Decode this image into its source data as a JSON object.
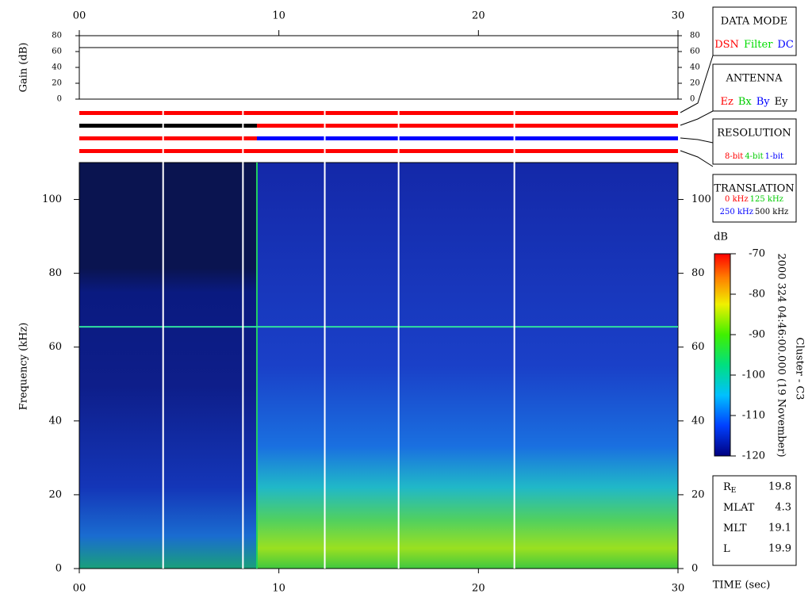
{
  "chart_data": [
    {
      "type": "line",
      "ylabel": "Gain (dB)",
      "xlim": [
        0,
        30
      ],
      "xticks": [
        {
          "value": 0,
          "label": "00"
        },
        10,
        20,
        30
      ],
      "ylim": [
        0,
        80
      ],
      "yticks": [
        0,
        20,
        40,
        60,
        80
      ],
      "x": [
        0,
        30
      ],
      "series": [
        {
          "color": "#000000",
          "values": [
            65,
            65
          ]
        }
      ]
    },
    {
      "type": "timeline",
      "xlim": [
        0,
        30
      ],
      "rows": [
        [
          {
            "start": 0,
            "end": 30,
            "color": "#ff0000"
          }
        ],
        [
          {
            "start": 0,
            "end": 8.9,
            "color": "#000000"
          },
          {
            "start": 8.9,
            "end": 30,
            "color": "#ff0000"
          }
        ],
        [
          {
            "start": 0,
            "end": 8.9,
            "color": "#ff0000"
          },
          {
            "start": 8.9,
            "end": 30,
            "color": "#0000ff"
          }
        ],
        [
          {
            "start": 0,
            "end": 30,
            "color": "#ff0000"
          }
        ]
      ]
    },
    {
      "type": "heatmap",
      "xlabel": "TIME (sec)",
      "ylabel": "Frequency (kHz)",
      "xlim": [
        0,
        30
      ],
      "xticks": [
        {
          "value": 0,
          "label": "00"
        },
        10,
        20,
        30
      ],
      "ylim": [
        0,
        110
      ],
      "yticks": [
        0,
        20,
        40,
        60,
        80,
        100
      ],
      "data_gaps": [
        4.2,
        8.2,
        12.3,
        16,
        21.8
      ],
      "mode_change": 8.9,
      "interference_line": 65.5,
      "colorbar": {
        "label": "dB",
        "lim": [
          -120,
          -70
        ],
        "ticks": [
          -70,
          -80,
          -90,
          -100,
          -110,
          -120
        ]
      },
      "caption": [
        "2000 324 04:46:00.000 (19 November)",
        "Cluster - C3"
      ]
    }
  ],
  "legends": [
    {
      "title": "DATA MODE",
      "items": [
        {
          "text": "DSN",
          "color": "#ff0000"
        },
        {
          "text": "Filter",
          "color": "#00dd00"
        },
        {
          "text": "DC",
          "color": "#0000ff"
        }
      ]
    },
    {
      "title": "ANTENNA",
      "items": [
        {
          "text": "Ez",
          "color": "#ff0000"
        },
        {
          "text": "Bx",
          "color": "#00cc00"
        },
        {
          "text": "By",
          "color": "#0000ff"
        },
        {
          "text": "Ey",
          "color": "#000000"
        }
      ]
    },
    {
      "title": "RESOLUTION",
      "items": [
        {
          "text": "8-bit",
          "color": "#ff0000"
        },
        {
          "text": "4-bit",
          "color": "#00cc00"
        },
        {
          "text": "1-bit",
          "color": "#0000ff"
        }
      ]
    },
    {
      "title": "TRANSLATION",
      "items": [
        {
          "text": "0 kHz",
          "color": "#ff0000"
        },
        {
          "text": "125 kHz",
          "color": "#00cc00"
        },
        {
          "text": "250 kHz",
          "color": "#0000ff"
        },
        {
          "text": "500 kHz",
          "color": "#000000"
        }
      ]
    }
  ],
  "info": [
    {
      "label": "R",
      "sub": "E",
      "value": 19.8
    },
    {
      "label": "MLAT",
      "value": 4.3
    },
    {
      "label": "MLT",
      "value": 19.1
    },
    {
      "label": "L",
      "value": 19.9
    }
  ]
}
